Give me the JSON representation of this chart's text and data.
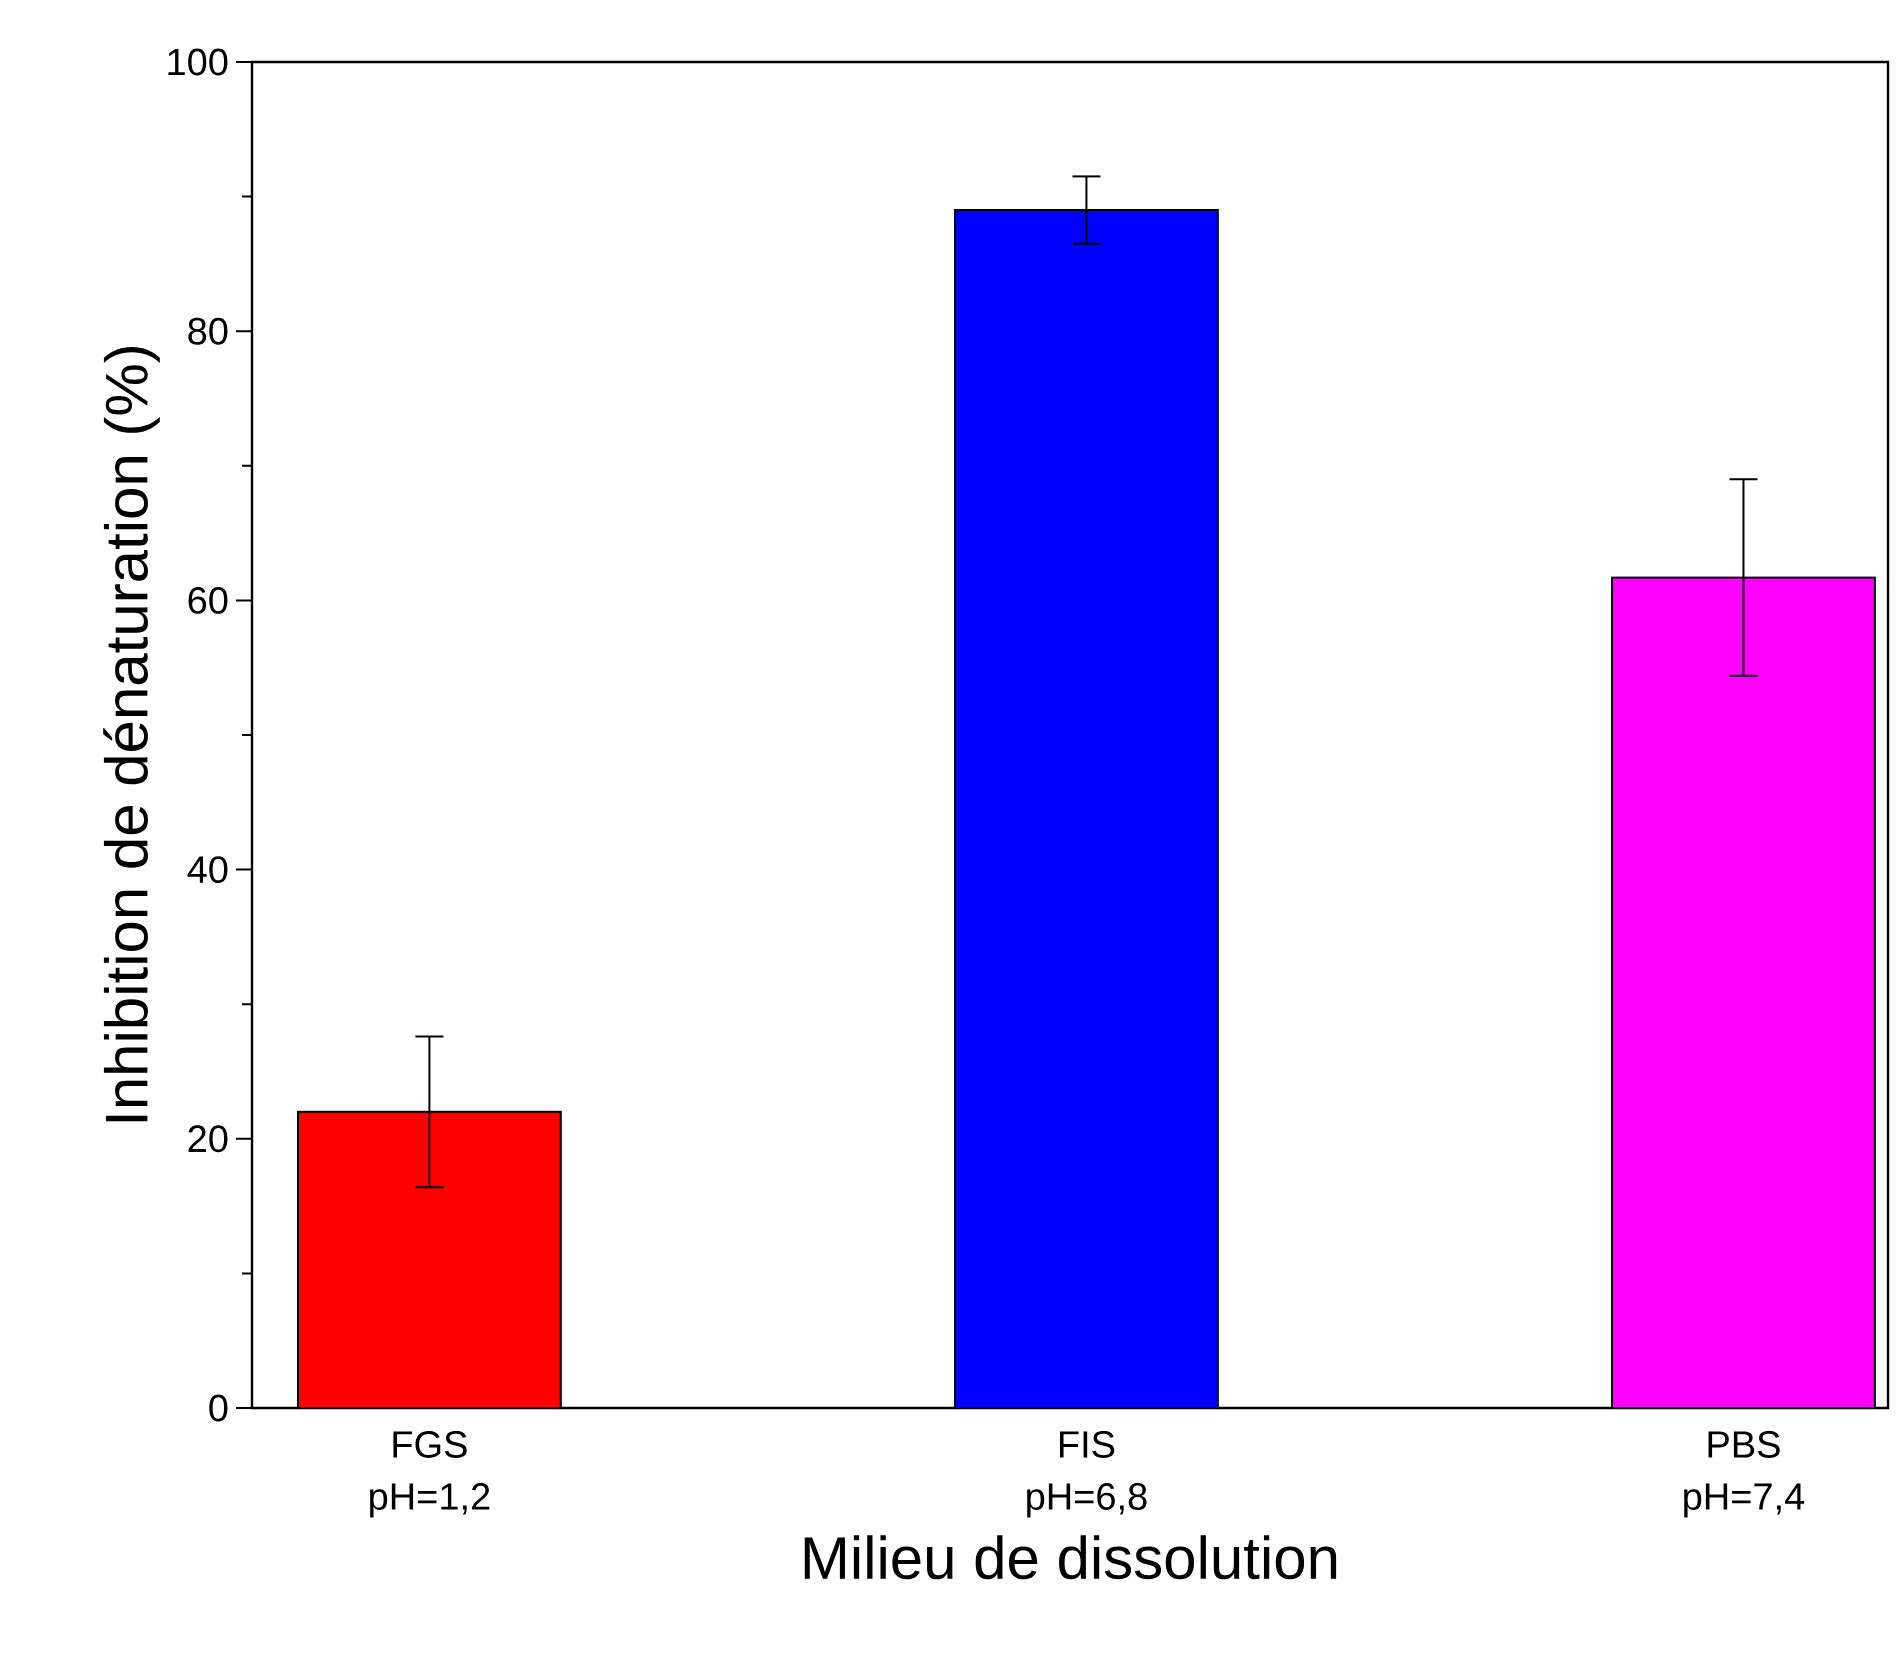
{
  "chart_data": {
    "type": "bar",
    "xlabel": "Milieu de dissolution",
    "ylabel": "Inhibition de dénaturation (%)",
    "categories": [
      "FGS pH=1,2",
      "FIS pH=6,8",
      "PBS pH=7,4"
    ],
    "values": [
      22.0,
      89.0,
      61.7
    ],
    "errors": [
      5.6,
      2.5,
      7.3
    ],
    "colors": [
      "#ff0000",
      "#0000ff",
      "#ff00ff"
    ],
    "ylim": [
      0,
      100
    ],
    "yticks": [
      0,
      20,
      40,
      60,
      80,
      100
    ]
  }
}
